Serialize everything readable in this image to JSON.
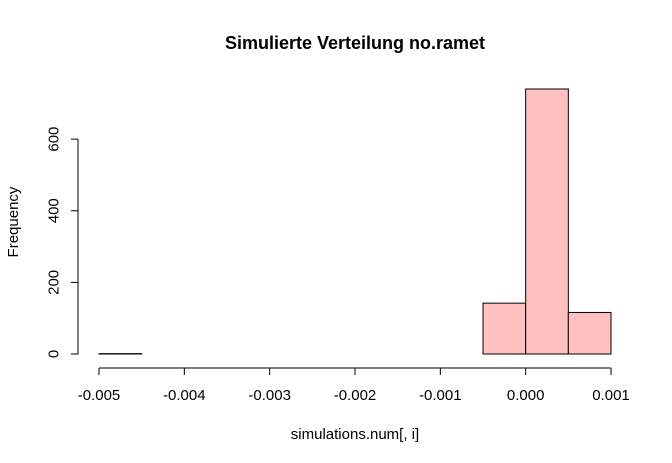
{
  "chart_data": {
    "type": "bar",
    "title": "Simulierte Verteilung no.ramet",
    "xlabel": "simulations.num[, i]",
    "ylabel": "Frequency",
    "xlim": [
      -0.005,
      0.001
    ],
    "ylim": [
      0,
      740
    ],
    "x_ticks": [
      -0.005,
      -0.004,
      -0.003,
      -0.002,
      -0.001,
      0.0,
      0.001
    ],
    "x_tick_labels": [
      "-0.005",
      "-0.004",
      "-0.003",
      "-0.002",
      "-0.001",
      "0.000",
      "0.001"
    ],
    "y_ticks": [
      0,
      200,
      400,
      600
    ],
    "y_tick_labels": [
      "0",
      "200",
      "400",
      "600"
    ],
    "bins": [
      {
        "start": -0.005,
        "end": -0.0045,
        "count": 1
      },
      {
        "start": -0.0045,
        "end": -0.004,
        "count": 0
      },
      {
        "start": -0.004,
        "end": -0.0035,
        "count": 0
      },
      {
        "start": -0.0035,
        "end": -0.003,
        "count": 0
      },
      {
        "start": -0.003,
        "end": -0.0025,
        "count": 0
      },
      {
        "start": -0.0025,
        "end": -0.002,
        "count": 0
      },
      {
        "start": -0.002,
        "end": -0.0015,
        "count": 0
      },
      {
        "start": -0.0015,
        "end": -0.001,
        "count": 0
      },
      {
        "start": -0.001,
        "end": -0.0005,
        "count": 0
      },
      {
        "start": -0.0005,
        "end": 0.0,
        "count": 142
      },
      {
        "start": 0.0,
        "end": 0.0005,
        "count": 740
      },
      {
        "start": 0.0005,
        "end": 0.001,
        "count": 116
      }
    ],
    "bar_color": "#ffc0c0",
    "grid": false
  }
}
